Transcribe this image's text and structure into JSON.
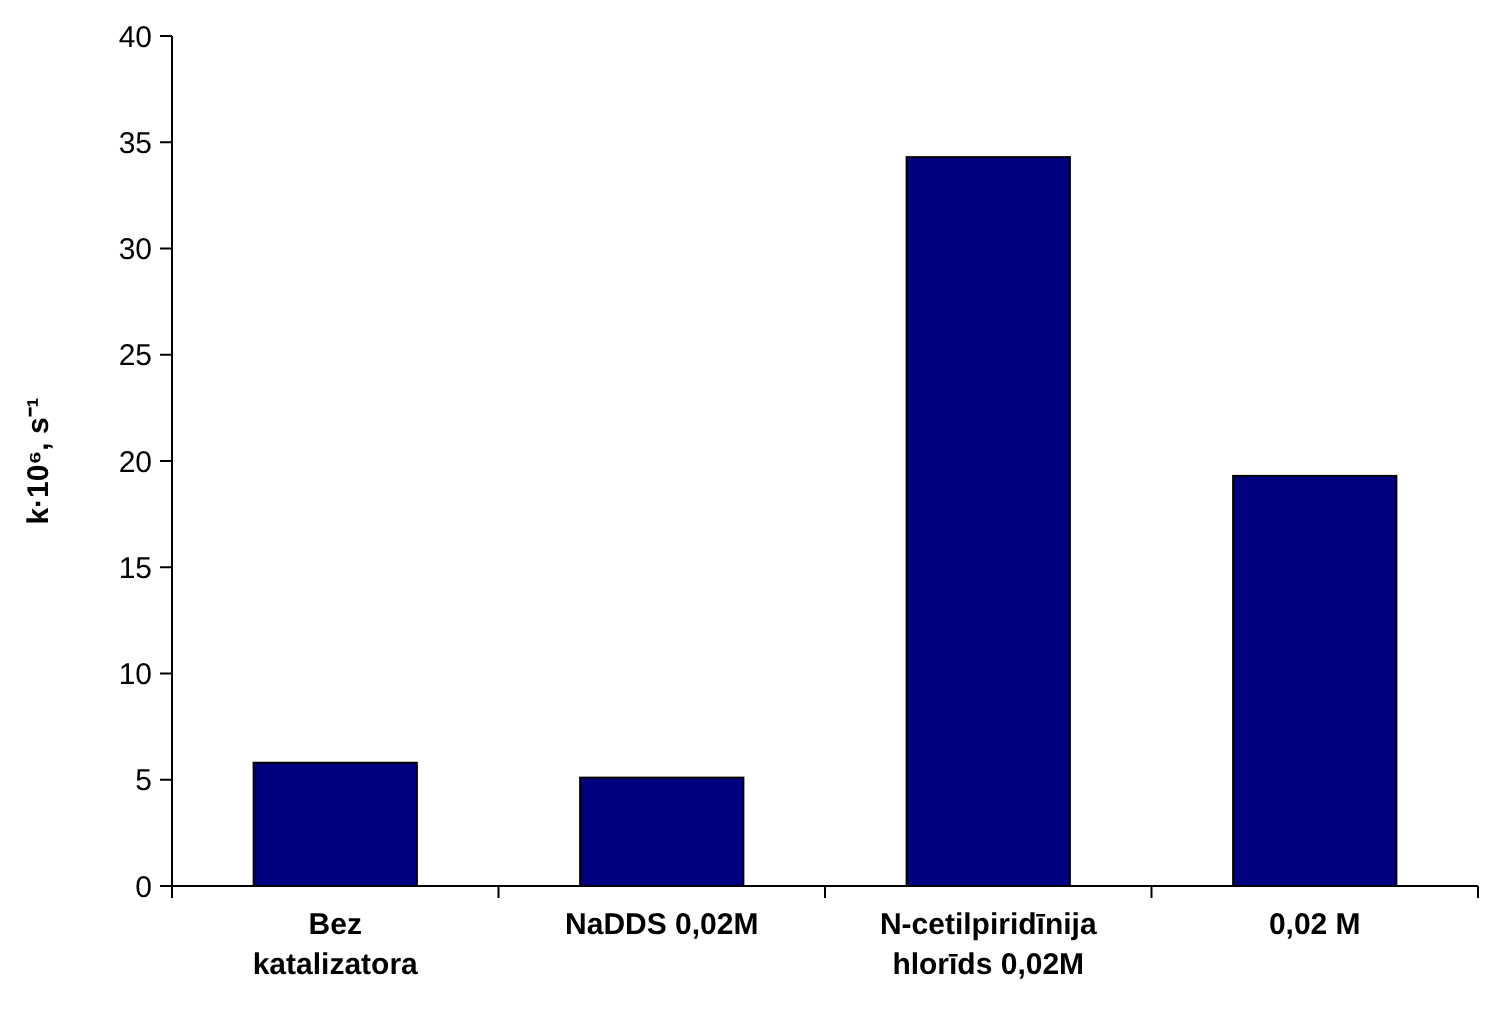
{
  "chart_data": {
    "type": "bar",
    "ylabel": "k·10⁶, s⁻¹",
    "categories": [
      "Bez\nkatalizatora",
      "NaDDS 0,02M",
      "N-cetilpiridīnija\nhlorīds 0,02M",
      "0,02 M"
    ],
    "values": [
      5.8,
      5.1,
      34.3,
      19.3
    ],
    "color": "#000080",
    "ylim": [
      0,
      40
    ],
    "yticks": [
      0,
      5,
      10,
      15,
      20,
      25,
      30,
      35,
      40
    ],
    "grid": false
  }
}
